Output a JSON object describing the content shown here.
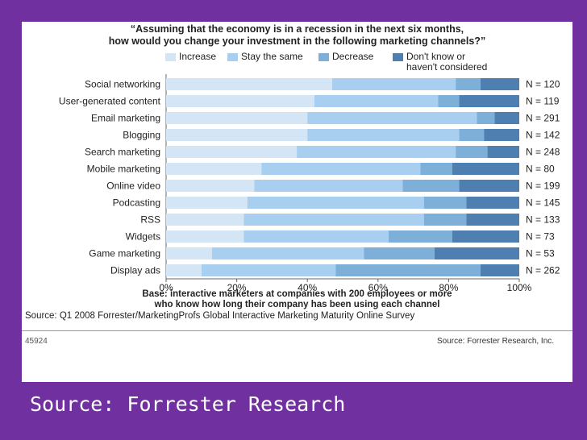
{
  "caption": "Source: Forrester Research",
  "chart_data": {
    "type": "bar",
    "stacked": true,
    "orientation": "horizontal",
    "title_line1": "“Assuming that the economy is in a recession in the next six months,",
    "title_line2": "how would you change your investment in the following marketing channels?”",
    "categories": [
      "Social networking",
      "User-generated content",
      "Email marketing",
      "Blogging",
      "Search marketing",
      "Mobile marketing",
      "Online video",
      "Podcasting",
      "RSS",
      "Widgets",
      "Game marketing",
      "Display ads"
    ],
    "n_labels": [
      "N = 120",
      "N = 119",
      "N = 291",
      "N = 142",
      "N = 248",
      "N = 80",
      "N = 199",
      "N = 145",
      "N = 133",
      "N = 73",
      "N = 53",
      "N = 262"
    ],
    "series": [
      {
        "name": "Increase",
        "color": "#d4e6f6",
        "values": [
          47,
          42,
          40,
          40,
          37,
          27,
          25,
          23,
          22,
          22,
          13,
          10
        ]
      },
      {
        "name": "Stay the same",
        "color": "#a9cff0",
        "values": [
          35,
          35,
          48,
          43,
          45,
          45,
          42,
          50,
          51,
          41,
          43,
          38
        ]
      },
      {
        "name": "Decrease",
        "color": "#7dafd9",
        "values": [
          7,
          6,
          5,
          7,
          9,
          9,
          16,
          12,
          12,
          18,
          20,
          41
        ]
      },
      {
        "name_line1": "Don't know or",
        "name_line2": "haven't considered",
        "color": "#4f7fb1",
        "values": [
          11,
          17,
          7,
          10,
          9,
          19,
          17,
          15,
          15,
          19,
          24,
          11
        ]
      }
    ],
    "x_ticks": [
      "0%",
      "20%",
      "40%",
      "60%",
      "80%",
      "100%"
    ],
    "xlim": [
      0,
      100
    ],
    "base_line1": "Base: interactive marketers at companies with 200 employees or more",
    "base_line2": "who know how long their company has been using each channel",
    "survey_source": "Source: Q1 2008 Forrester/MarketingProfs Global Interactive Marketing Maturity Online Survey",
    "figure_id": "45924",
    "publisher": "Source: Forrester Research, Inc."
  }
}
